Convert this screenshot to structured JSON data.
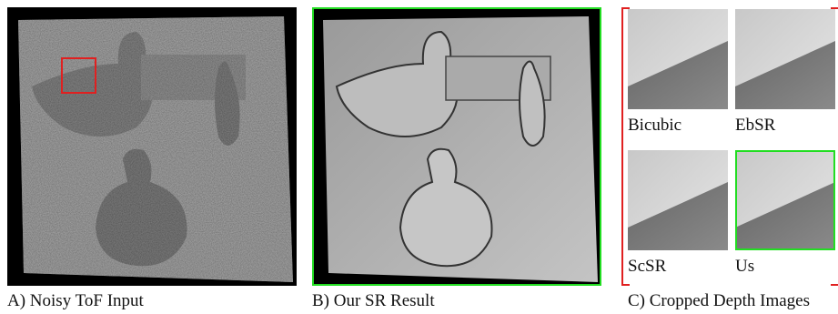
{
  "panels": [
    {
      "caption": "A) Noisy ToF Input"
    },
    {
      "caption": "B) Our SR Result"
    },
    {
      "caption": "C) Cropped Depth Images"
    }
  ],
  "crops": [
    {
      "label": "Bicubic"
    },
    {
      "label": "EbSR"
    },
    {
      "label": "ScSR"
    },
    {
      "label": "Us"
    }
  ]
}
